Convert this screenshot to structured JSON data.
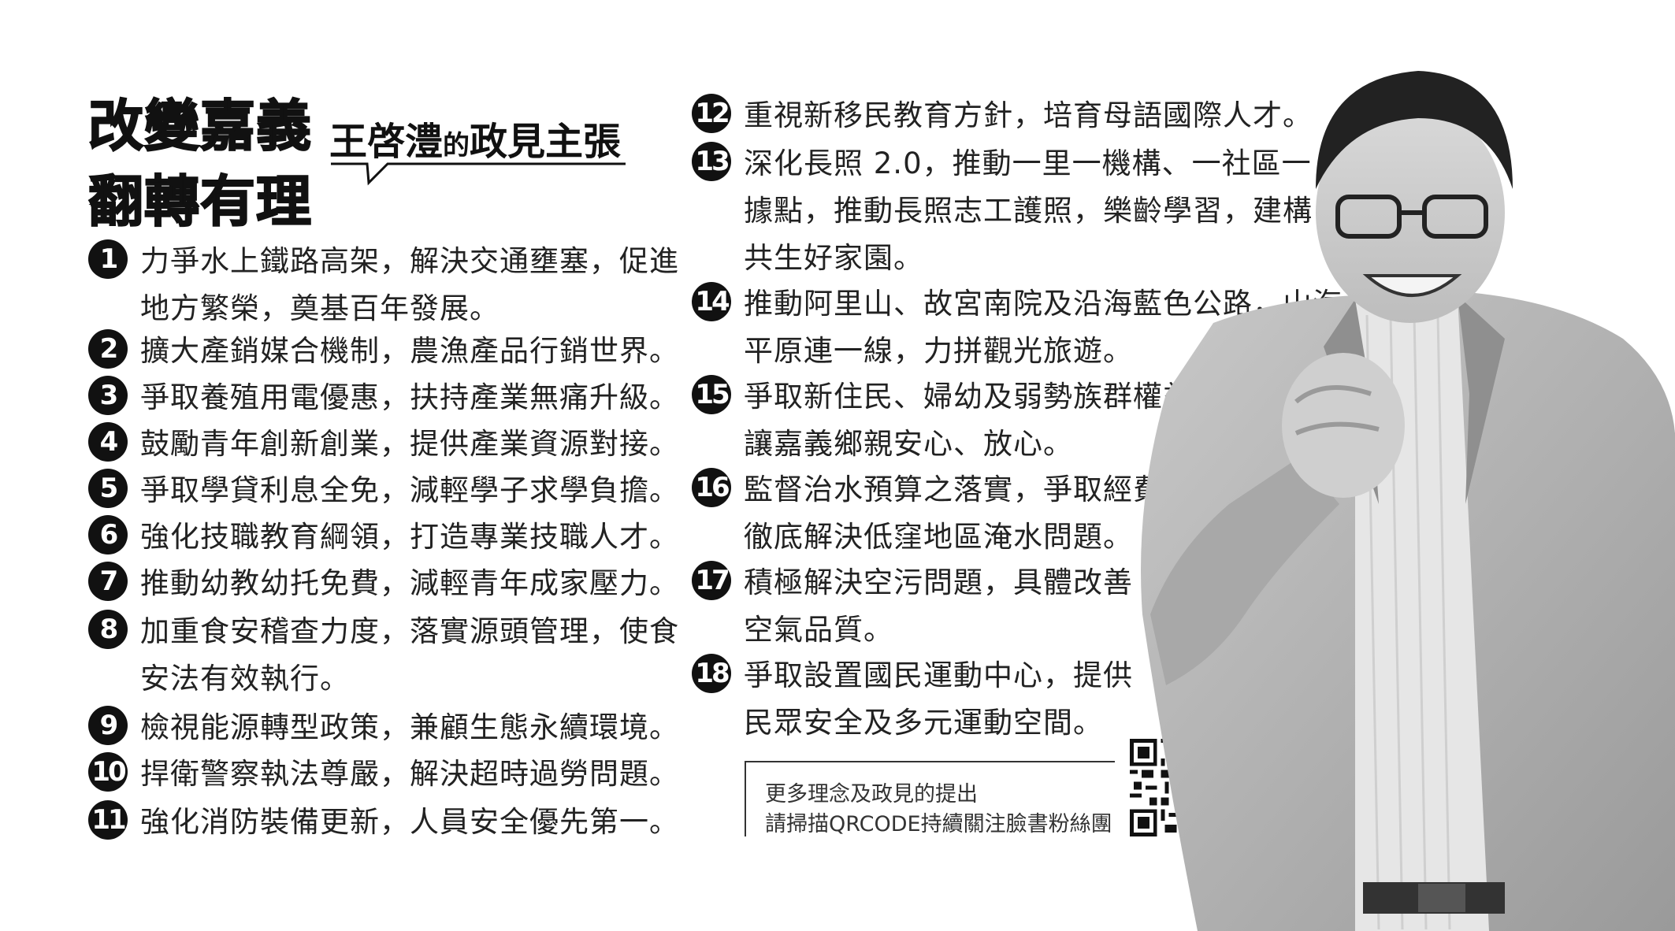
{
  "header": {
    "slogan_line1": "改變嘉義",
    "slogan_line2": "翻轉有理",
    "candidate_name": "王啓澧",
    "subtitle_connector": "的",
    "subtitle_tail": "政見主張"
  },
  "policies_left": [
    {
      "num": "1",
      "text": "力爭水上鐵路高架，解決交通壅塞，促進\n地方繁榮，奠基百年發展。"
    },
    {
      "num": "2",
      "text": "擴大產銷媒合機制，農漁產品行銷世界。"
    },
    {
      "num": "3",
      "text": "爭取養殖用電優惠，扶持產業無痛升級。"
    },
    {
      "num": "4",
      "text": "鼓勵青年創新創業，提供產業資源對接。"
    },
    {
      "num": "5",
      "text": "爭取學貸利息全免，減輕學子求學負擔。"
    },
    {
      "num": "6",
      "text": "強化技職教育綱領，打造專業技職人才。"
    },
    {
      "num": "7",
      "text": "推動幼教幼托免費，減輕青年成家壓力。"
    },
    {
      "num": "8",
      "text": "加重食安稽查力度，落實源頭管理，使食\n安法有效執行。"
    },
    {
      "num": "9",
      "text": "檢視能源轉型政策，兼顧生態永續環境。"
    },
    {
      "num": "10",
      "text": "捍衛警察執法尊嚴，解決超時過勞問題。"
    },
    {
      "num": "11",
      "text": "強化消防裝備更新，人員安全優先第一。"
    }
  ],
  "policies_right": [
    {
      "num": "12",
      "text": "重視新移民教育方針，培育母語國際人才。"
    },
    {
      "num": "13",
      "text": "深化長照 2.0，推動一里一機構、一社區一\n據點，推動長照志工護照，樂齡學習，建構\n共生好家園。"
    },
    {
      "num": "14",
      "text": "推動阿里山、故宮南院及沿海藍色公路，山海\n平原連一線，力拼觀光旅遊。"
    },
    {
      "num": "15",
      "text": "爭取新住民、婦幼及弱勢族群權益，\n讓嘉義鄉親安心、放心。"
    },
    {
      "num": "16",
      "text": "監督治水預算之落實，爭取經費\n徹底解決低窪地區淹水問題。"
    },
    {
      "num": "17",
      "text": "積極解決空污問題，具體改善\n空氣品質。"
    },
    {
      "num": "18",
      "text": "爭取設置國民運動中心，提供\n民眾安全及多元運動空間。"
    }
  ],
  "qr_note": {
    "line1": "更多理念及政見的提出",
    "line2": "請掃描QRCODE持續關注臉書粉絲團"
  },
  "colors": {
    "ink": "#111111",
    "text": "#222222",
    "background": "#ffffff"
  },
  "icons": {
    "qr": "qr-code-icon",
    "photo": "candidate-photo"
  }
}
